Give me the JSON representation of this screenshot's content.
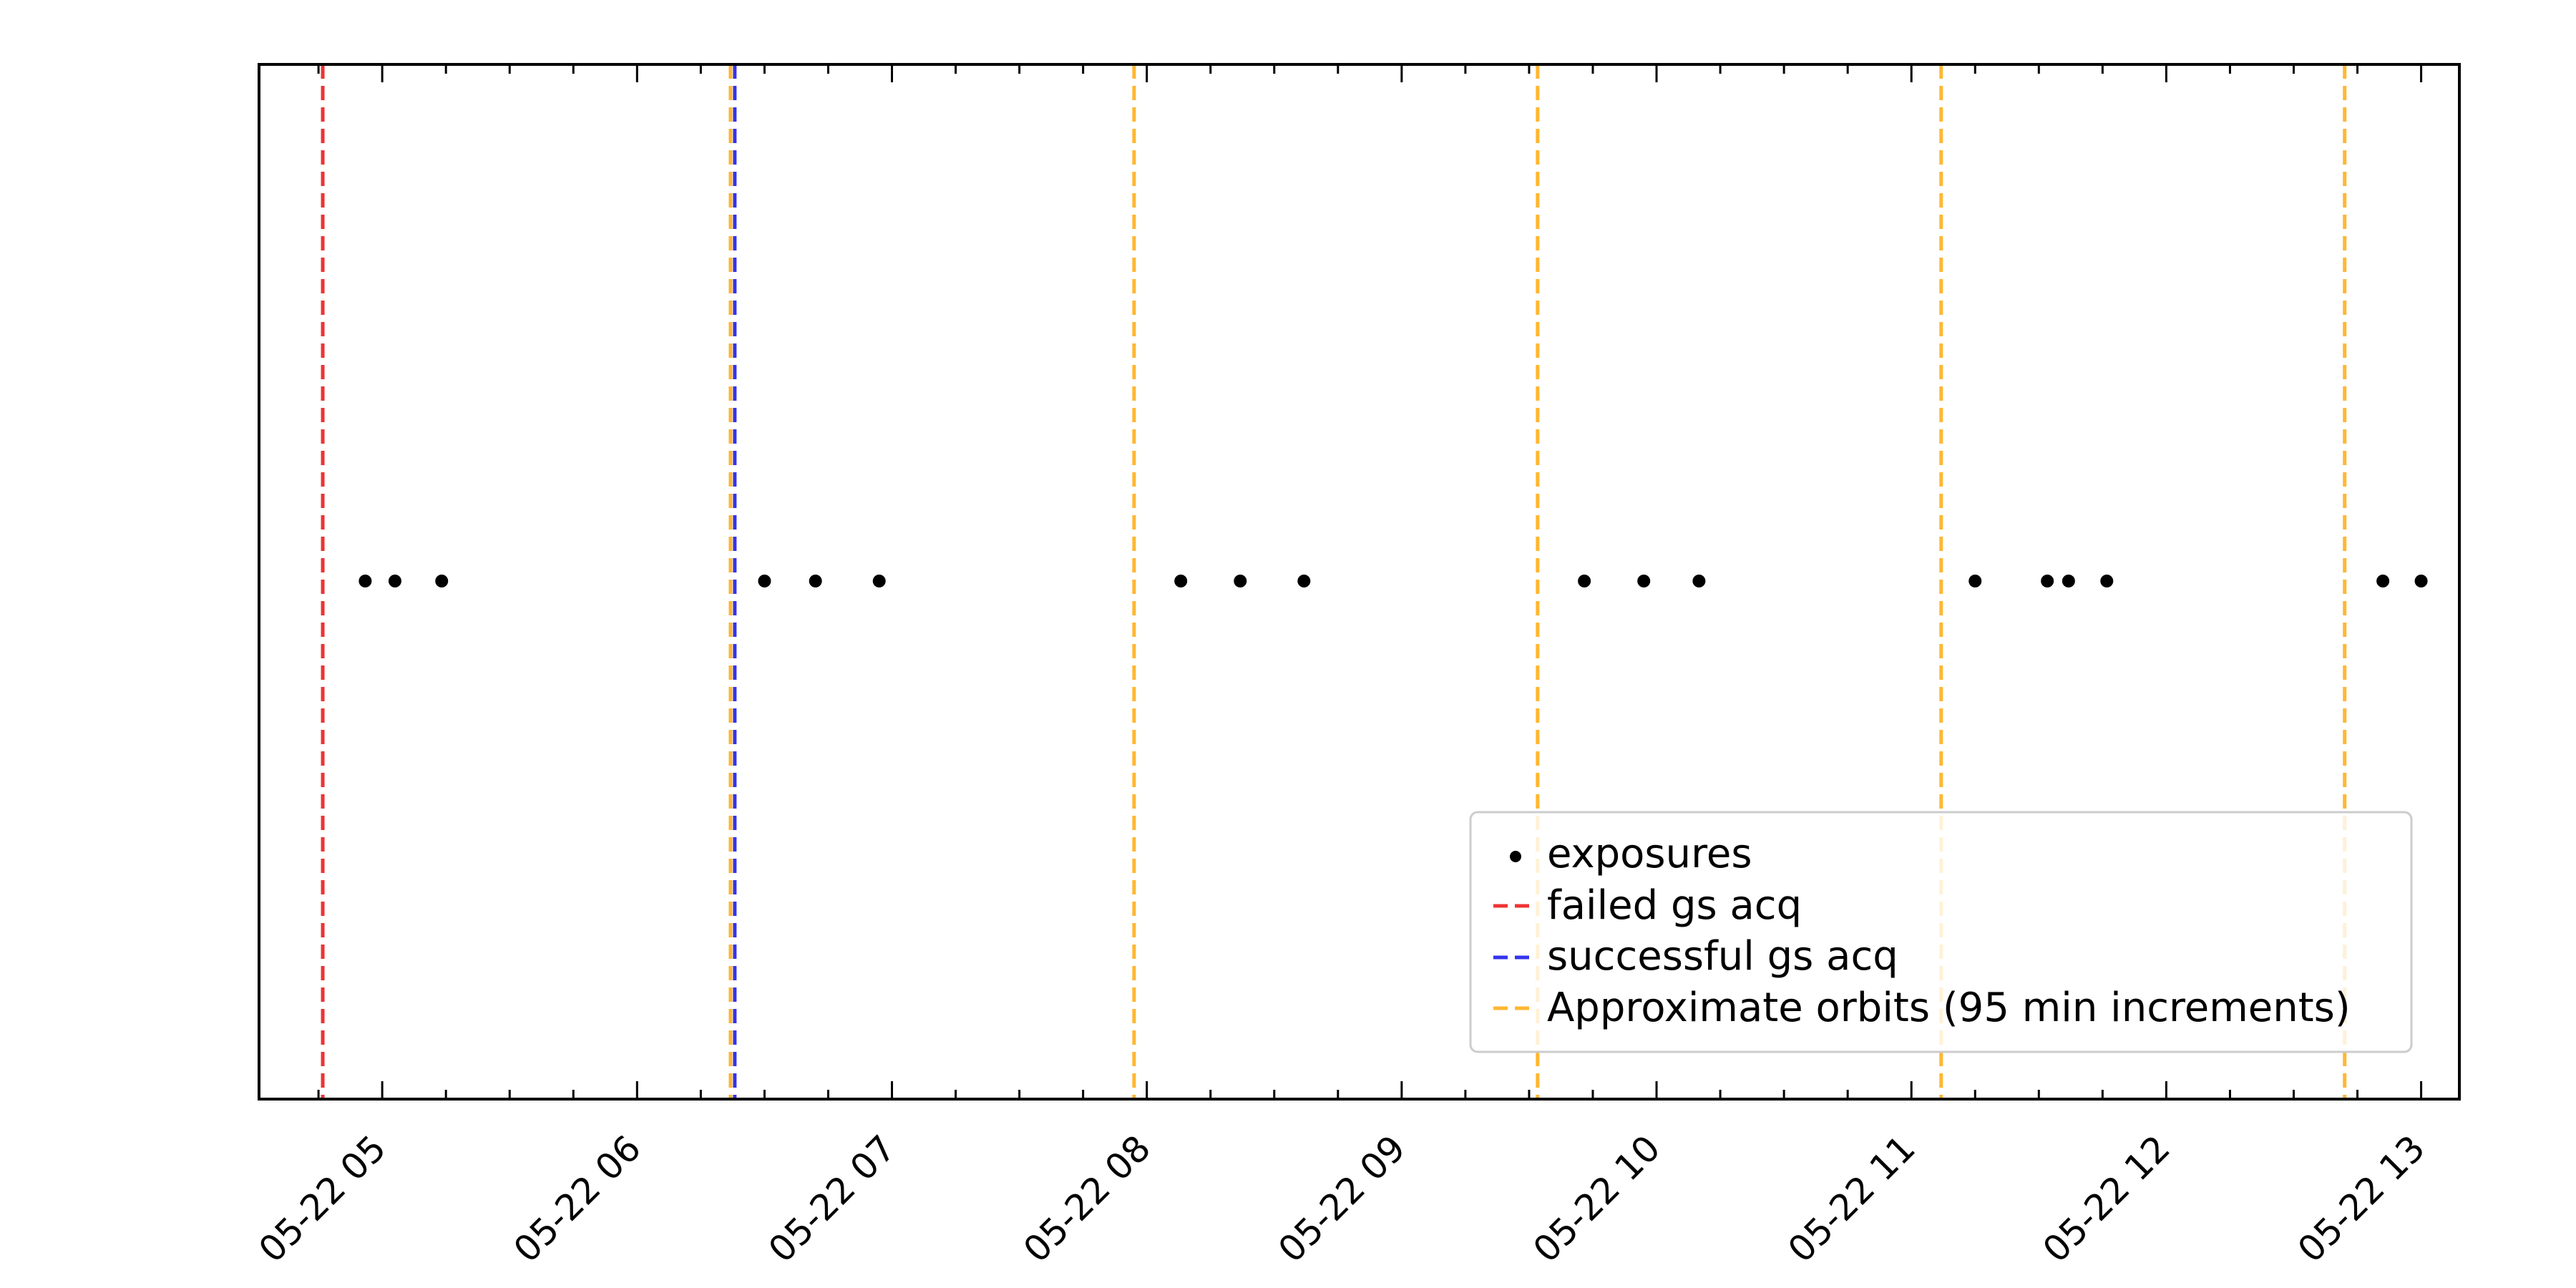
{
  "chart_data": {
    "type": "scatter",
    "title": "",
    "xlabel": "",
    "ylabel": "",
    "x_axis": {
      "kind": "datetime",
      "range": [
        "05-22 04:31",
        "05-22 13:09"
      ],
      "tick_labels": [
        "05-22 05",
        "05-22 06",
        "05-22 07",
        "05-22 08",
        "05-22 09",
        "05-22 10",
        "05-22 11",
        "05-22 12",
        "05-22 13"
      ],
      "tick_values": [
        "05-22 05:00",
        "05-22 06:00",
        "05-22 07:00",
        "05-22 08:00",
        "05-22 09:00",
        "05-22 10:00",
        "05-22 11:00",
        "05-22 12:00",
        "05-22 13:00"
      ],
      "minor_ticks_per_major": 4
    },
    "y_axis": {
      "visible": false
    },
    "grid": false,
    "legend_position": "lower-right",
    "series": [
      {
        "name": "exposures",
        "kind": "points",
        "color": "#000000",
        "x": [
          "05-22 04:56",
          "05-22 05:03",
          "05-22 05:14",
          "05-22 06:30",
          "05-22 06:42",
          "05-22 06:57",
          "05-22 08:08",
          "05-22 08:22",
          "05-22 08:37",
          "05-22 09:43",
          "05-22 09:57",
          "05-22 10:10",
          "05-22 11:15",
          "05-22 11:32",
          "05-22 11:37",
          "05-22 11:46",
          "05-22 12:51",
          "05-22 13:00"
        ],
        "y": [
          0,
          0,
          0,
          0,
          0,
          0,
          0,
          0,
          0,
          0,
          0,
          0,
          0,
          0,
          0,
          0,
          0,
          0
        ]
      },
      {
        "name": "failed gs acq",
        "kind": "vline",
        "color": "#ee3333",
        "x": [
          "05-22 04:46"
        ]
      },
      {
        "name": "successful gs acq",
        "kind": "vline",
        "color": "#3333ee",
        "x": [
          "05-22 06:23"
        ]
      },
      {
        "name": "Approximate orbits (95 min increments)",
        "kind": "vline",
        "color": "#ffb732",
        "x": [
          "05-22 06:22",
          "05-22 07:57",
          "05-22 09:32",
          "05-22 11:07",
          "05-22 12:42"
        ]
      }
    ]
  }
}
